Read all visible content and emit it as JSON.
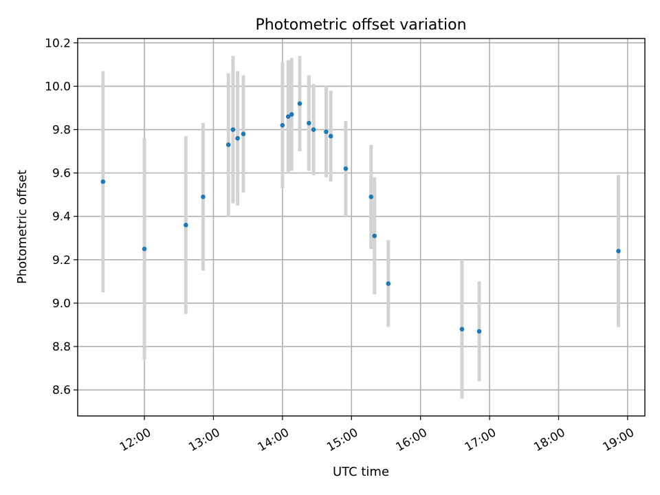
{
  "chart_data": {
    "type": "scatter",
    "title": "Photometric offset variation",
    "xlabel": "UTC time",
    "ylabel": "Photometric offset",
    "xlim": [
      "11:02",
      "19:15"
    ],
    "ylim": [
      8.48,
      10.22
    ],
    "x_ticks": [
      "12:00",
      "13:00",
      "14:00",
      "15:00",
      "16:00",
      "17:00",
      "18:00",
      "19:00"
    ],
    "y_ticks": [
      "8.6",
      "8.8",
      "9.0",
      "9.2",
      "9.4",
      "9.6",
      "9.8",
      "10.0",
      "10.2"
    ],
    "grid": true,
    "legend": "none",
    "point_color": "#1f77b4",
    "errorbar_color": "#d3d3d3",
    "points": [
      {
        "time": "11:24",
        "y": 9.56,
        "err": 0.51
      },
      {
        "time": "12:00",
        "y": 9.25,
        "err": 0.51
      },
      {
        "time": "12:36",
        "y": 9.36,
        "err": 0.41
      },
      {
        "time": "12:51",
        "y": 9.49,
        "err": 0.34
      },
      {
        "time": "13:13",
        "y": 9.73,
        "err": 0.33
      },
      {
        "time": "13:17",
        "y": 9.8,
        "err": 0.34
      },
      {
        "time": "13:21",
        "y": 9.76,
        "err": 0.31
      },
      {
        "time": "13:26",
        "y": 9.78,
        "err": 0.27
      },
      {
        "time": "14:00",
        "y": 9.82,
        "err": 0.29
      },
      {
        "time": "14:05",
        "y": 9.86,
        "err": 0.26
      },
      {
        "time": "14:08",
        "y": 9.87,
        "err": 0.26
      },
      {
        "time": "14:15",
        "y": 9.92,
        "err": 0.22
      },
      {
        "time": "14:23",
        "y": 9.83,
        "err": 0.22
      },
      {
        "time": "14:27",
        "y": 9.8,
        "err": 0.21
      },
      {
        "time": "14:38",
        "y": 9.79,
        "err": 0.21
      },
      {
        "time": "14:42",
        "y": 9.77,
        "err": 0.21
      },
      {
        "time": "14:55",
        "y": 9.62,
        "err": 0.22
      },
      {
        "time": "15:17",
        "y": 9.49,
        "err": 0.24
      },
      {
        "time": "15:20",
        "y": 9.31,
        "err": 0.27
      },
      {
        "time": "15:32",
        "y": 9.09,
        "err": 0.2
      },
      {
        "time": "16:36",
        "y": 8.88,
        "err": 0.32
      },
      {
        "time": "16:51",
        "y": 8.87,
        "err": 0.23
      },
      {
        "time": "18:52",
        "y": 9.24,
        "err": 0.35
      }
    ]
  }
}
